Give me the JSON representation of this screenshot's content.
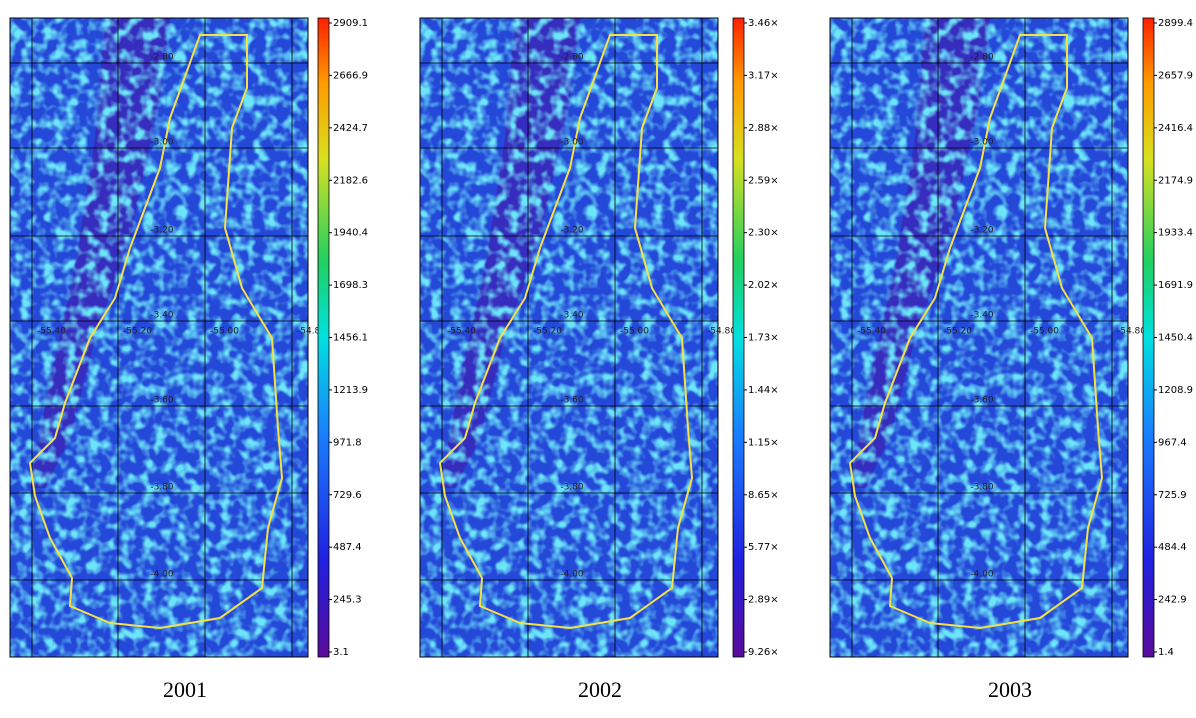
{
  "panels": [
    {
      "caption": "2001",
      "colorbar_labels": [
        "2909.1",
        "2666.9",
        "2424.7",
        "2182.6",
        "1940.4",
        "1698.3",
        "1456.1",
        "1213.9",
        "971.8",
        "729.6",
        "487.4",
        "245.3",
        "3.1"
      ]
    },
    {
      "caption": "2002",
      "colorbar_labels": [
        "3.46×",
        "3.17×",
        "2.88×",
        "2.59×",
        "2.30×",
        "2.02×",
        "1.73×",
        "1.44×",
        "1.15×",
        "8.65×",
        "5.77×",
        "2.89×",
        "9.26×"
      ]
    },
    {
      "caption": "2003",
      "colorbar_labels": [
        "2899.4",
        "2657.9",
        "2416.4",
        "2174.9",
        "1933.4",
        "1691.9",
        "1450.4",
        "1208.9",
        "967.4",
        "725.9",
        "484.4",
        "242.9",
        "1.4"
      ]
    }
  ],
  "grid_labels": {
    "latitude": [
      "-2.80",
      "-3.00",
      "-3.20",
      "-3.40",
      "-3.60",
      "-3.80",
      "-4.00"
    ],
    "longitude": [
      "-55.40",
      "-55.20",
      "-55.00",
      "-54.80"
    ]
  }
}
